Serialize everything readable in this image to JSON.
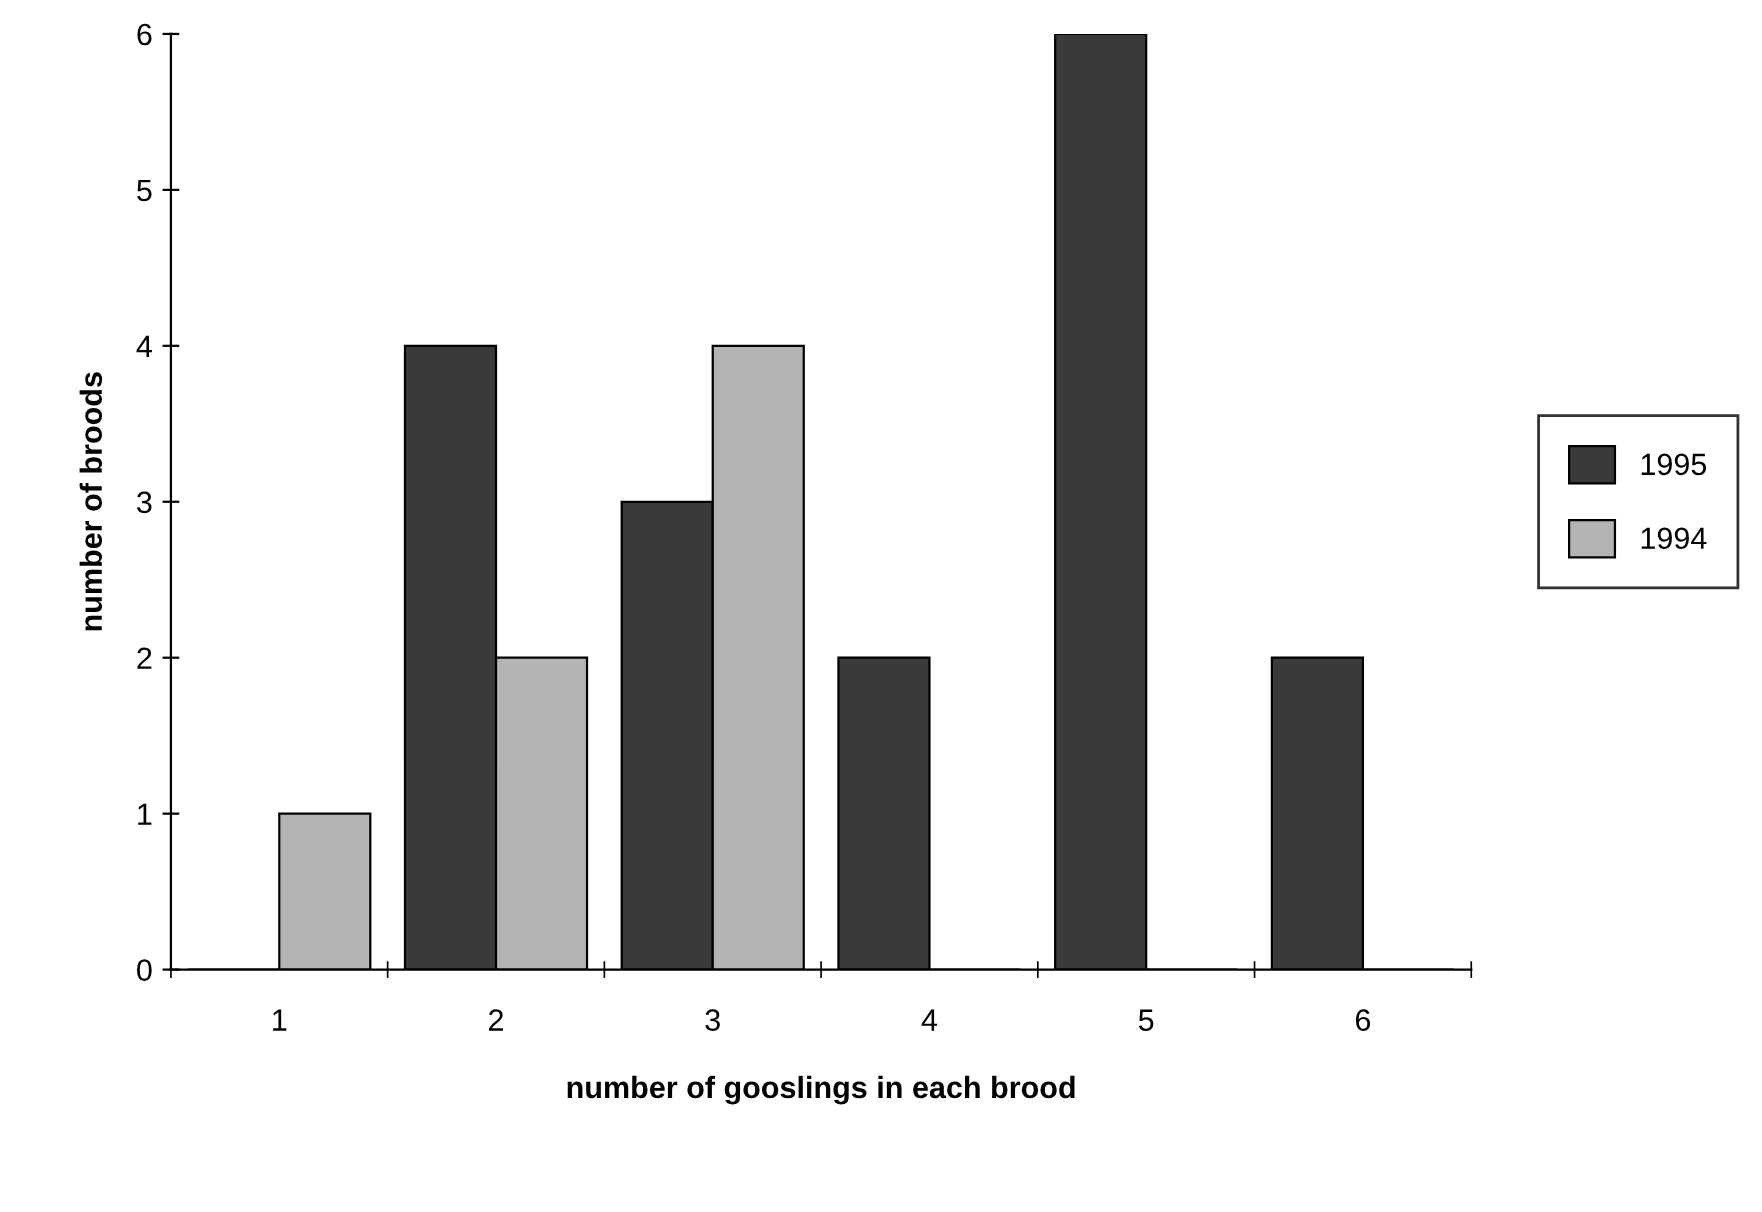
{
  "chart_data": {
    "type": "bar",
    "xlabel": "number of gooslings in each brood",
    "ylabel": "number of broods",
    "categories": [
      "1",
      "2",
      "3",
      "4",
      "5",
      "6"
    ],
    "series": [
      {
        "name": "1995",
        "color": "#3a3a3a",
        "values": [
          0,
          4,
          3,
          2,
          6,
          2
        ]
      },
      {
        "name": "1994",
        "color": "#b4b4b4",
        "values": [
          1,
          2,
          4,
          0,
          0,
          0
        ]
      }
    ],
    "ylim": [
      0,
      6
    ],
    "yticks": [
      0,
      1,
      2,
      3,
      4,
      5,
      6
    ],
    "grid": false,
    "legend": "right"
  }
}
